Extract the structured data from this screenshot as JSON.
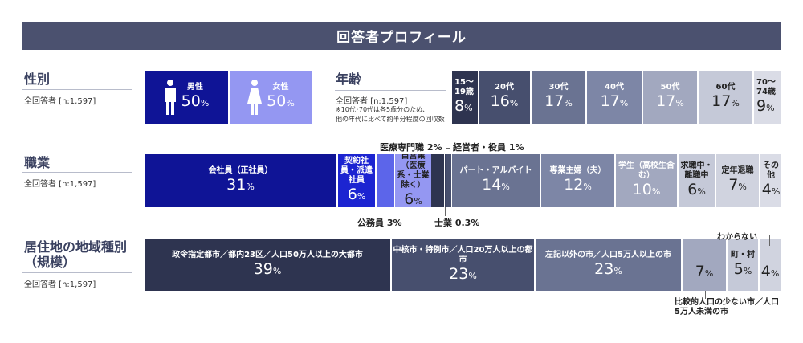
{
  "title": "回答者プロフィール",
  "respondents_label": "全回答者 [n:1,597]",
  "gender": {
    "title": "性別",
    "segments": [
      {
        "label": "男性",
        "value": "50",
        "color": "#0f1496"
      },
      {
        "label": "女性",
        "value": "50",
        "color": "#9497f2"
      }
    ]
  },
  "age": {
    "title": "年齢",
    "note1": "※10代･70代は各5歳分のため、",
    "note2": "他の年代に比べて約半分程度の回収数",
    "segments": [
      {
        "label": "15〜19歳",
        "value": "8"
      },
      {
        "label": "20代",
        "value": "16"
      },
      {
        "label": "30代",
        "value": "17"
      },
      {
        "label": "40代",
        "value": "17"
      },
      {
        "label": "50代",
        "value": "17"
      },
      {
        "label": "60代",
        "value": "17"
      },
      {
        "label": "70〜74歳",
        "value": "9"
      }
    ]
  },
  "occupation": {
    "title": "職業",
    "segments": [
      {
        "label": "会社員（正社員）",
        "value": "31"
      },
      {
        "label": "契約社員・派遣社員",
        "value": "6"
      },
      {
        "label": "公務員",
        "value": "3"
      },
      {
        "label": "自営業（医療系・士業除く）",
        "value": "6"
      },
      {
        "label": "医療専門職",
        "value": "2"
      },
      {
        "label": "士業",
        "value": "0.3"
      },
      {
        "label": "経営者・役員",
        "value": "1"
      },
      {
        "label": "パート・アルバイト",
        "value": "14"
      },
      {
        "label": "専業主婦（夫）",
        "value": "12"
      },
      {
        "label": "学生（高校生含む）",
        "value": "10"
      },
      {
        "label": "求職中・離職中",
        "value": "6"
      },
      {
        "label": "定年退職",
        "value": "7"
      },
      {
        "label": "その他",
        "value": "4"
      }
    ]
  },
  "residence": {
    "title": "居住地の地域種別",
    "title2": "（規模）",
    "segments": [
      {
        "label": "政令指定都市／都内23区／人口50万人以上の大都市",
        "value": "39"
      },
      {
        "label": "中核市・特例市／人口20万人以上の都市",
        "value": "23"
      },
      {
        "label": "左記以外の市／人口5万人以上の市",
        "value": "23"
      },
      {
        "label": "比較的人口の少ない市／人口5万人未満の市",
        "value": "7"
      },
      {
        "label": "町・村",
        "value": "5"
      },
      {
        "label": "わからない",
        "value": "4"
      }
    ]
  },
  "pct": "%",
  "chart_data": {
    "type": "bar",
    "stacked_100": true,
    "title": "回答者プロフィール",
    "series": [
      {
        "name": "性別",
        "categories": [
          "男性",
          "女性"
        ],
        "values": [
          50,
          50
        ]
      },
      {
        "name": "年齢",
        "categories": [
          "15〜19歳",
          "20代",
          "30代",
          "40代",
          "50代",
          "60代",
          "70〜74歳"
        ],
        "values": [
          8,
          16,
          17,
          17,
          17,
          17,
          9
        ]
      },
      {
        "name": "職業",
        "categories": [
          "会社員（正社員）",
          "契約社員・派遣社員",
          "公務員",
          "自営業（医療系・士業除く）",
          "医療専門職",
          "士業",
          "経営者・役員",
          "パート・アルバイト",
          "専業主婦（夫）",
          "学生（高校生含む）",
          "求職中・離職中",
          "定年退職",
          "その他"
        ],
        "values": [
          31,
          6,
          3,
          6,
          2,
          0.3,
          1,
          14,
          12,
          10,
          6,
          7,
          4
        ]
      },
      {
        "name": "居住地の地域種別（規模）",
        "categories": [
          "政令指定都市／都内23区／人口50万人以上の大都市",
          "中核市・特例市／人口20万人以上の都市",
          "左記以外の市／人口5万人以上の市",
          "比較的人口の少ない市／人口5万人未満の市",
          "町・村",
          "わからない"
        ],
        "values": [
          39,
          23,
          23,
          7,
          5,
          4
        ]
      }
    ]
  }
}
